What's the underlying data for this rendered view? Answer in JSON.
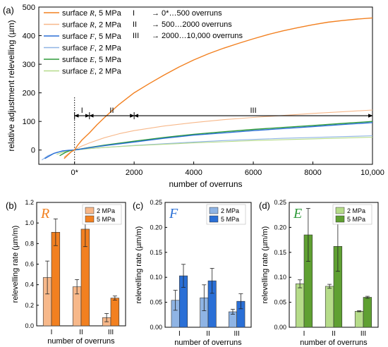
{
  "chart_data": [
    {
      "panel": "(a)",
      "type": "line",
      "xlabel": "number of overruns",
      "ylabel": "relative adjustment relevelling (µm)",
      "xlim": [
        -1200,
        10000
      ],
      "ylim": [
        -50,
        500
      ],
      "x_ticks": [
        "0*",
        "2000",
        "4000",
        "6000",
        "8000",
        "10,000"
      ],
      "x_tick_values": [
        0,
        2000,
        4000,
        6000,
        8000,
        10000
      ],
      "y_ticks": [
        "0",
        "100",
        "200",
        "300",
        "400",
        "500"
      ],
      "y_tick_values": [
        0,
        100,
        200,
        300,
        400,
        500
      ],
      "legend_placement": "top-left",
      "series": [
        {
          "name": "surface R, 5 MPa",
          "surface": "R",
          "pressure": "5 MPa",
          "color": "#f28020",
          "width": 1.4,
          "x": [
            -350,
            -200,
            -100,
            0,
            100,
            250,
            500,
            750,
            1000,
            1250,
            1500,
            1750,
            2000,
            2500,
            3000,
            3500,
            4000,
            4500,
            5000,
            5500,
            6000,
            6500,
            7000,
            7500,
            8000,
            8500,
            9000,
            9500,
            10000
          ],
          "y": [
            -30,
            -15,
            -5,
            0,
            16,
            35,
            60,
            88,
            113,
            137,
            160,
            180,
            200,
            232,
            262,
            290,
            315,
            337,
            356,
            373,
            389,
            404,
            417,
            428,
            438,
            447,
            453,
            458,
            462
          ]
        },
        {
          "name": "surface R, 2 MPa",
          "surface": "R",
          "pressure": "2 MPa",
          "color": "#f7b88a",
          "width": 1.1,
          "x": [
            -350,
            -150,
            0,
            200,
            500,
            1000,
            1500,
            2000,
            3000,
            4000,
            5000,
            6000,
            7000,
            8000,
            9000,
            10000
          ],
          "y": [
            -25,
            -8,
            0,
            12,
            25,
            43,
            57,
            68,
            84,
            96,
            106,
            114,
            121,
            128,
            134,
            140
          ]
        },
        {
          "name": "surface F, 5 MPa",
          "surface": "F",
          "pressure": "5 MPa",
          "color": "#2a6fd6",
          "width": 1.4,
          "x": [
            -1000,
            -700,
            -400,
            -200,
            0,
            500,
            1000,
            2000,
            3000,
            4000,
            5000,
            6000,
            7000,
            8000,
            9000,
            10000
          ],
          "y": [
            -30,
            -12,
            -3,
            -1,
            0,
            8,
            15,
            28,
            41,
            52,
            60,
            68,
            75,
            82,
            89,
            96
          ]
        },
        {
          "name": "surface F, 2 MPa",
          "surface": "F",
          "pressure": "2 MPa",
          "color": "#8fb4e4",
          "width": 1.1,
          "x": [
            -1100,
            -900,
            -600,
            -300,
            0,
            500,
            1000,
            2000,
            3000,
            4000,
            5000,
            6000,
            7000,
            8000,
            9000,
            10000
          ],
          "y": [
            -35,
            -20,
            -8,
            -3,
            0,
            5,
            9,
            16,
            22,
            28,
            33,
            37,
            41,
            44,
            47,
            50
          ]
        },
        {
          "name": "surface E, 5 MPa",
          "surface": "E",
          "pressure": "5 MPa",
          "color": "#2e9a3a",
          "width": 1.4,
          "x": [
            -500,
            -300,
            -150,
            0,
            500,
            1000,
            2000,
            3000,
            4000,
            5000,
            6000,
            7000,
            8000,
            9000,
            10000
          ],
          "y": [
            -20,
            -8,
            -2,
            0,
            9,
            17,
            31,
            44,
            55,
            64,
            72,
            79,
            86,
            93,
            100
          ]
        },
        {
          "name": "surface E, 2 MPa",
          "surface": "E",
          "pressure": "2 MPa",
          "color": "#b6dc8a",
          "width": 1.1,
          "x": [
            -600,
            -300,
            0,
            500,
            1000,
            2000,
            3000,
            4000,
            5000,
            6000,
            7000,
            8000,
            9000,
            10000
          ],
          "y": [
            -15,
            -5,
            0,
            5,
            9,
            15,
            20,
            25,
            29,
            33,
            36,
            39,
            42,
            45
          ]
        }
      ],
      "annotations": [
        {
          "text": "I",
          "description": "→ 0*…500 overruns",
          "x_start": 0,
          "x_end": 500
        },
        {
          "text": "II",
          "description": "→ 500…2000 overruns",
          "x_start": 500,
          "x_end": 2000
        },
        {
          "text": "III",
          "description": "→ 2000…10,000 overruns",
          "x_start": 2000,
          "x_end": 10000
        }
      ],
      "arrow_y": 120,
      "dotted_vline_x": 0
    },
    {
      "panel": "(b)",
      "type": "bar",
      "surface_label": "R",
      "surface_color": "#f28020",
      "xlabel": "number of overruns",
      "ylabel": "relevelling rate (µm/m)",
      "categories": [
        "I",
        "II",
        "III"
      ],
      "ylim": [
        0,
        1.2
      ],
      "y_ticks": [
        "0.0",
        "0.2",
        "0.4",
        "0.6",
        "0.8",
        "1.0",
        "1.2"
      ],
      "y_tick_values": [
        0,
        0.2,
        0.4,
        0.6,
        0.8,
        1.0,
        1.2
      ],
      "legend_placement": "top-right",
      "series": [
        {
          "name": "2 MPa",
          "color": "#f7b88a",
          "values": [
            0.47,
            0.38,
            0.08
          ],
          "errors": [
            0.16,
            0.07,
            0.04
          ]
        },
        {
          "name": "5 MPa",
          "color": "#f28020",
          "values": [
            0.91,
            0.94,
            0.27
          ],
          "errors": [
            0.13,
            0.17,
            0.02
          ]
        }
      ]
    },
    {
      "panel": "(c)",
      "type": "bar",
      "surface_label": "F",
      "surface_color": "#2a6fd6",
      "xlabel": "number of overruns",
      "ylabel": "relevelling rate (µm/m)",
      "categories": [
        "I",
        "II",
        "III"
      ],
      "ylim": [
        0,
        0.25
      ],
      "y_ticks": [
        "0.00",
        "0.05",
        "0.10",
        "0.15",
        "0.20",
        "0.25"
      ],
      "y_tick_values": [
        0,
        0.05,
        0.1,
        0.15,
        0.2,
        0.25
      ],
      "legend_placement": "top-right",
      "series": [
        {
          "name": "2 MPa",
          "color": "#8fb4e4",
          "values": [
            0.054,
            0.059,
            0.031
          ],
          "errors": [
            0.02,
            0.026,
            0.005
          ]
        },
        {
          "name": "5 MPa",
          "color": "#2a6fd6",
          "values": [
            0.103,
            0.093,
            0.052
          ],
          "errors": [
            0.023,
            0.025,
            0.015
          ]
        }
      ]
    },
    {
      "panel": "(d)",
      "type": "bar",
      "surface_label": "E",
      "surface_color": "#2e9a3a",
      "xlabel": "number of overruns",
      "ylabel": "relevelling rate (µm/m)",
      "categories": [
        "I",
        "II",
        "III"
      ],
      "ylim": [
        0,
        0.25
      ],
      "y_ticks": [
        "0.00",
        "0.05",
        "0.10",
        "0.15",
        "0.20",
        "0.25"
      ],
      "y_tick_values": [
        0,
        0.05,
        0.1,
        0.15,
        0.2,
        0.25
      ],
      "legend_placement": "top-right",
      "series": [
        {
          "name": "2 MPa",
          "color": "#b6dc8a",
          "values": [
            0.087,
            0.082,
            0.032
          ],
          "errors": [
            0.008,
            0.004,
            0.001
          ]
        },
        {
          "name": "5 MPa",
          "color": "#5fa032",
          "values": [
            0.185,
            0.162,
            0.06
          ],
          "errors": [
            0.053,
            0.05,
            0.002
          ]
        }
      ]
    }
  ]
}
